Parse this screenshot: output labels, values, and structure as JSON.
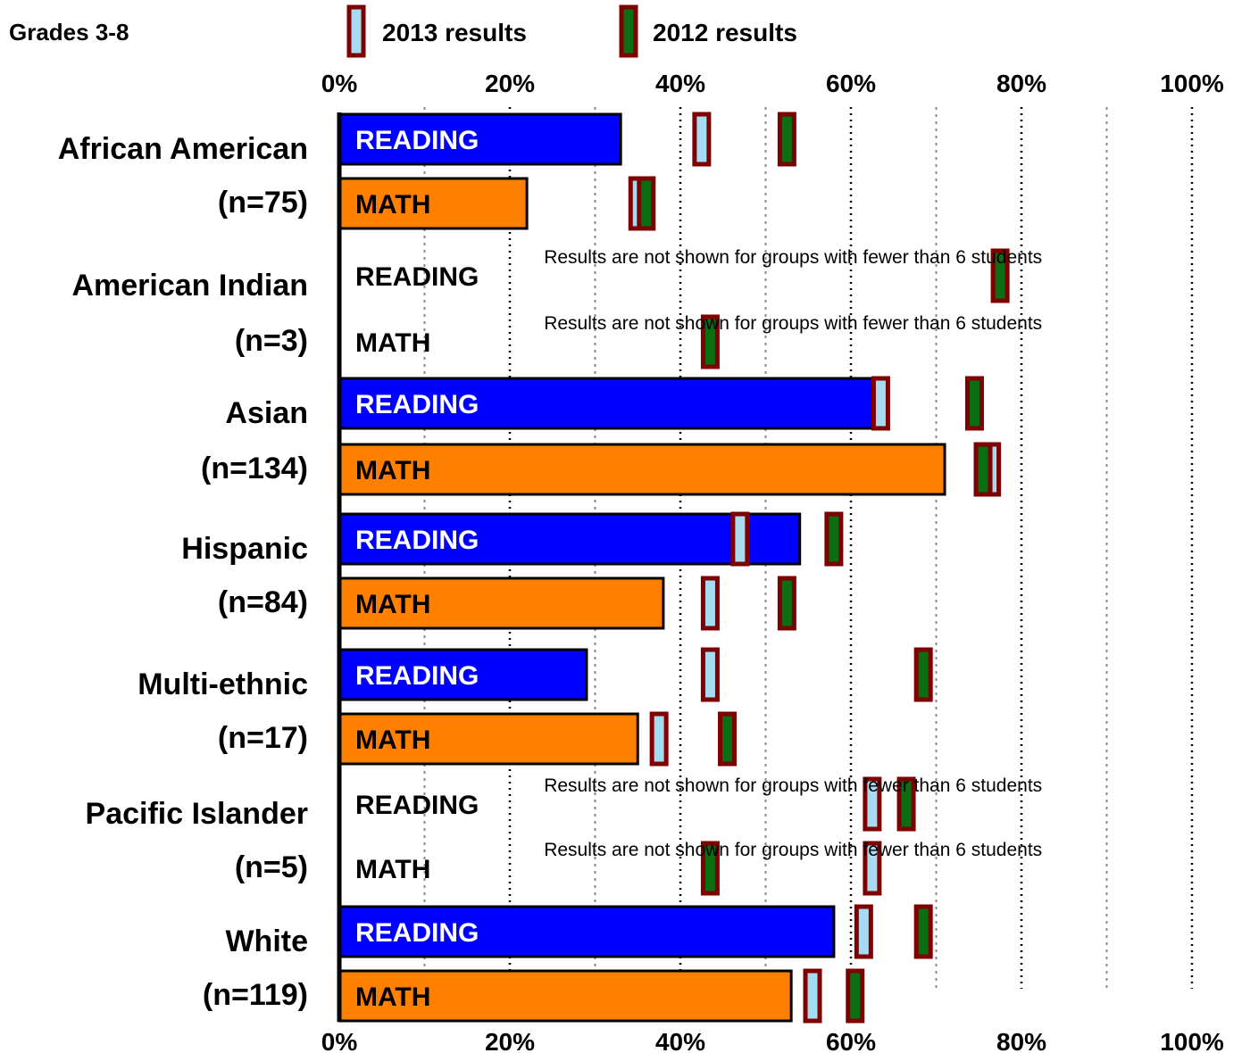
{
  "chart_data": {
    "type": "bar",
    "orientation": "horizontal",
    "title": "Grades 3-8",
    "legend": [
      {
        "name": "2013 results",
        "fill": "#a6dcf2",
        "stroke": "#7f0000"
      },
      {
        "name": "2012 results",
        "fill": "#0b6e12",
        "stroke": "#7f0000"
      }
    ],
    "legend_placement": "top",
    "xlim": [
      0,
      100
    ],
    "x_ticks": [
      "0%",
      "20%",
      "40%",
      "60%",
      "80%",
      "100%"
    ],
    "grid": true,
    "colors": {
      "reading": "#0000ff",
      "math": "#ff8000",
      "marker_outline": "#7f0000"
    },
    "note": "Results are not shown for groups with fewer than 6 students",
    "groups": [
      {
        "label": "African American",
        "n": "(n=75)",
        "rows": [
          {
            "label": "READING",
            "value": 33,
            "marker_2013": 42.5,
            "marker_2012": 52.5
          },
          {
            "label": "MATH",
            "value": 22,
            "marker_2013": 35,
            "marker_2012": 36
          }
        ]
      },
      {
        "label": "American Indian",
        "n": "(n=3)",
        "rows": [
          {
            "label": "READING",
            "value": null,
            "marker_2013": null,
            "marker_2012": 77.5
          },
          {
            "label": "MATH",
            "value": null,
            "marker_2013": null,
            "marker_2012": 43.5
          }
        ]
      },
      {
        "label": "Asian",
        "n": "(n=134)",
        "rows": [
          {
            "label": "READING",
            "value": 63,
            "marker_2013": 63.5,
            "marker_2012": 74.5
          },
          {
            "label": "MATH",
            "value": 71,
            "marker_2013": 76.5,
            "marker_2012": 75.5
          }
        ]
      },
      {
        "label": "Hispanic",
        "n": "(n=84)",
        "rows": [
          {
            "label": "READING",
            "value": 54,
            "marker_2013": 47,
            "marker_2012": 58
          },
          {
            "label": "MATH",
            "value": 38,
            "marker_2013": 43.5,
            "marker_2012": 52.5
          }
        ]
      },
      {
        "label": "Multi-ethnic",
        "n": "(n=17)",
        "rows": [
          {
            "label": "READING",
            "value": 29,
            "marker_2013": 43.5,
            "marker_2012": 68.5
          },
          {
            "label": "MATH",
            "value": 35,
            "marker_2013": 37.5,
            "marker_2012": 45.5
          }
        ]
      },
      {
        "label": "Pacific Islander",
        "n": "(n=5)",
        "rows": [
          {
            "label": "READING",
            "value": null,
            "marker_2013": 62.5,
            "marker_2012": 66.5
          },
          {
            "label": "MATH",
            "value": null,
            "marker_2013": 62.5,
            "marker_2012": 43.5
          }
        ]
      },
      {
        "label": "White",
        "n": "(n=119)",
        "rows": [
          {
            "label": "READING",
            "value": 58,
            "marker_2013": 61.5,
            "marker_2012": 68.5
          },
          {
            "label": "MATH",
            "value": 53,
            "marker_2013": 55.5,
            "marker_2012": 60.5
          }
        ]
      }
    ]
  }
}
